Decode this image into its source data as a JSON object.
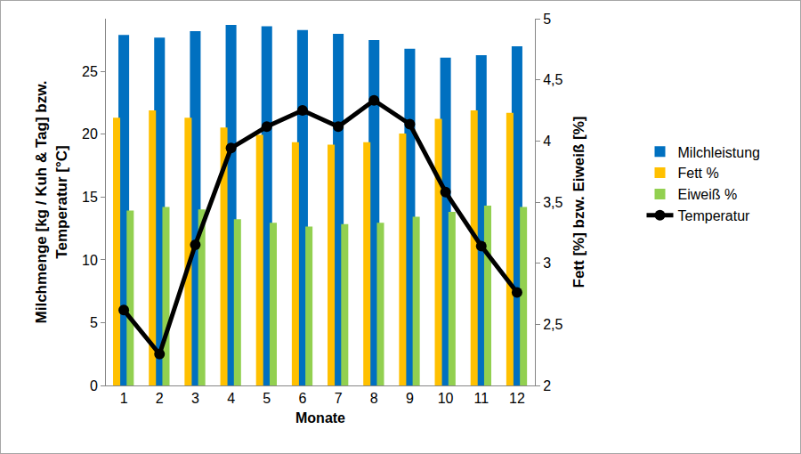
{
  "chart_data": {
    "type": "bar",
    "x_label": "Monate",
    "y_label": "Milchmenge [kg / Kuh & Tag] bzw.\nTemperatur [°C]",
    "y2_label": "Fett [%] bzw. Eiweiß [%]",
    "categories": [
      "1",
      "2",
      "3",
      "4",
      "5",
      "6",
      "7",
      "8",
      "9",
      "10",
      "11",
      "12"
    ],
    "ylim": [
      0,
      29.2
    ],
    "yticks": [
      0,
      5,
      10,
      15,
      20,
      25
    ],
    "y2lim": [
      2,
      5
    ],
    "y2ticks": [
      2,
      {
        "value": 2.5,
        "label": "2,5"
      },
      3,
      {
        "value": 3.5,
        "label": "3,5"
      },
      4,
      {
        "value": 4.5,
        "label": "4,5"
      },
      5
    ],
    "grid": false,
    "legend": "right",
    "series": [
      {
        "name": "Milchleistung",
        "type": "bar",
        "color": "#0070c0",
        "values": [
          27.9,
          27.7,
          28.2,
          28.7,
          28.6,
          28.3,
          28.0,
          27.5,
          26.8,
          26.1,
          26.3,
          27.0
        ]
      },
      {
        "name": "Fett %",
        "type": "bar",
        "color": "#ffc000",
        "axis": "y2",
        "values": [
          4.19,
          4.25,
          4.19,
          4.11,
          4.05,
          3.99,
          3.97,
          3.99,
          4.06,
          4.18,
          4.25,
          4.23
        ]
      },
      {
        "name": "Eiweiß %",
        "type": "bar",
        "color": "#92d050",
        "axis": "y2",
        "values": [
          3.43,
          3.46,
          3.44,
          3.36,
          3.33,
          3.3,
          3.32,
          3.33,
          3.38,
          3.42,
          3.47,
          3.46
        ]
      },
      {
        "name": "Temperatur",
        "type": "line",
        "color": "#000000",
        "marker": "circle",
        "line_style": "solid",
        "values": [
          6.0,
          2.5,
          11.2,
          18.9,
          20.6,
          21.9,
          20.6,
          22.7,
          20.8,
          15.4,
          11.1,
          7.4
        ]
      }
    ]
  }
}
